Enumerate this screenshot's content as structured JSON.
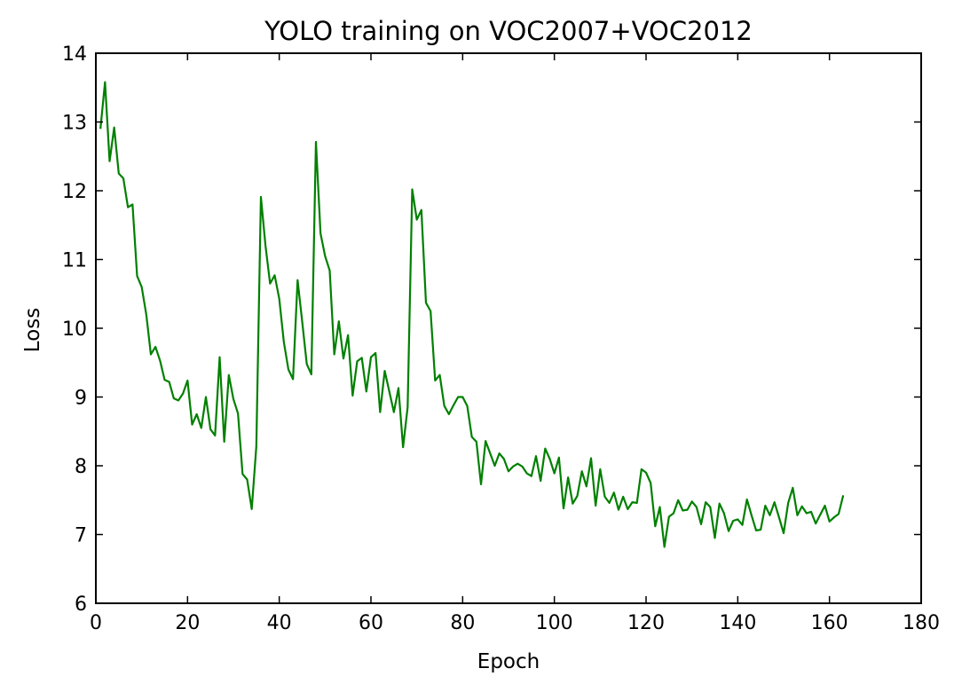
{
  "chart_data": {
    "type": "line",
    "title": "YOLO training on VOC2007+VOC2012",
    "xlabel": "Epoch",
    "ylabel": "Loss",
    "xlim": [
      0,
      180
    ],
    "ylim": [
      6,
      14
    ],
    "xticks": [
      0,
      20,
      40,
      60,
      80,
      100,
      120,
      140,
      160,
      180
    ],
    "yticks": [
      6,
      7,
      8,
      9,
      10,
      11,
      12,
      13,
      14
    ],
    "grid": false,
    "series": [
      {
        "color": "#008000",
        "x": [
          1,
          2,
          3,
          4,
          5,
          6,
          7,
          8,
          9,
          10,
          11,
          12,
          13,
          14,
          15,
          16,
          17,
          18,
          19,
          20,
          21,
          22,
          23,
          24,
          25,
          26,
          27,
          28,
          29,
          30,
          31,
          32,
          33,
          34,
          35,
          36,
          37,
          38,
          39,
          40,
          41,
          42,
          43,
          44,
          45,
          46,
          47,
          48,
          49,
          50,
          51,
          52,
          53,
          54,
          55,
          56,
          57,
          58,
          59,
          60,
          61,
          62,
          63,
          64,
          65,
          66,
          67,
          68,
          69,
          70,
          71,
          72,
          73,
          74,
          75,
          76,
          77,
          78,
          79,
          80,
          81,
          82,
          83,
          84,
          85,
          86,
          87,
          88,
          89,
          90,
          91,
          92,
          93,
          94,
          95,
          96,
          97,
          98,
          99,
          100,
          101,
          102,
          103,
          104,
          105,
          106,
          107,
          108,
          109,
          110,
          111,
          112,
          113,
          114,
          115,
          116,
          117,
          118,
          119,
          120,
          121,
          122,
          123,
          124,
          125,
          126,
          127,
          128,
          129,
          130,
          131,
          132,
          133,
          134,
          135,
          136,
          137,
          138,
          139,
          140,
          141,
          142,
          143,
          144,
          145,
          146,
          147,
          148,
          149,
          150,
          151,
          152,
          153,
          154,
          155,
          156,
          157,
          158,
          159,
          160,
          161,
          162,
          163
        ],
        "y": [
          12.9,
          13.58,
          12.43,
          12.92,
          12.25,
          12.18,
          11.76,
          11.8,
          10.76,
          10.6,
          10.2,
          9.62,
          9.73,
          9.53,
          9.25,
          9.22,
          8.98,
          8.95,
          9.05,
          9.24,
          8.6,
          8.75,
          8.55,
          9.0,
          8.53,
          8.44,
          9.58,
          8.35,
          9.32,
          8.97,
          8.76,
          7.88,
          7.8,
          7.37,
          8.28,
          11.91,
          11.2,
          10.65,
          10.77,
          10.43,
          9.8,
          9.4,
          9.26,
          10.7,
          10.1,
          9.48,
          9.33,
          12.71,
          11.38,
          11.05,
          10.84,
          9.62,
          10.1,
          9.56,
          9.9,
          9.02,
          9.52,
          9.57,
          9.08,
          9.58,
          9.64,
          8.78,
          9.38,
          9.08,
          8.78,
          9.13,
          8.27,
          8.85,
          12.02,
          11.58,
          11.72,
          10.37,
          10.25,
          9.24,
          9.32,
          8.87,
          8.75,
          8.88,
          9.0,
          9.0,
          8.87,
          8.42,
          8.35,
          7.73,
          8.36,
          8.18,
          8.0,
          8.18,
          8.1,
          7.92,
          7.99,
          8.03,
          7.99,
          7.89,
          7.85,
          8.14,
          7.78,
          8.25,
          8.1,
          7.89,
          8.12,
          7.38,
          7.83,
          7.45,
          7.56,
          7.92,
          7.7,
          8.11,
          7.42,
          7.95,
          7.55,
          7.46,
          7.61,
          7.36,
          7.55,
          7.37,
          7.47,
          7.46,
          7.95,
          7.9,
          7.75,
          7.12,
          7.4,
          6.82,
          7.26,
          7.31,
          7.5,
          7.35,
          7.36,
          7.48,
          7.4,
          7.15,
          7.47,
          7.4,
          6.95,
          7.45,
          7.31,
          7.05,
          7.2,
          7.22,
          7.14,
          7.51,
          7.28,
          7.06,
          7.07,
          7.42,
          7.28,
          7.47,
          7.25,
          7.02,
          7.46,
          7.68,
          7.28,
          7.41,
          7.31,
          7.33,
          7.16,
          7.29,
          7.42,
          7.19,
          7.25,
          7.3,
          7.57
        ]
      }
    ]
  }
}
